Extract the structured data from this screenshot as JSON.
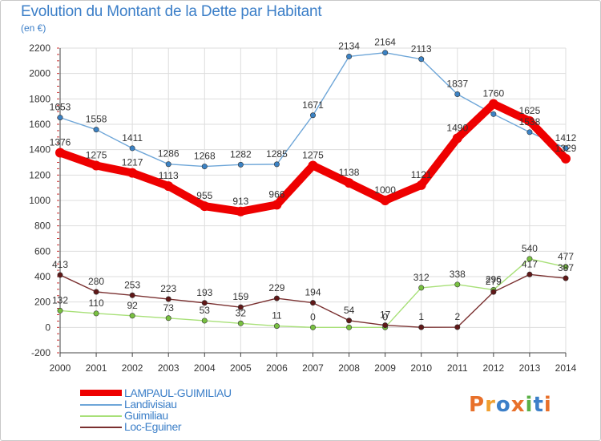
{
  "header": {
    "title": "Evolution du Montant de la Dette par Habitant",
    "subtitle": "(en €)"
  },
  "logo": {
    "text": "Proxiti",
    "colors": [
      "#e8702a",
      "#f0a030",
      "#3c7fc8",
      "#e8702a",
      "#5ab046",
      "#3c7fc8",
      "#e8702a"
    ]
  },
  "chart_data": {
    "type": "line",
    "title": "Evolution du Montant de la Dette par Habitant",
    "ylabel": "(en €)",
    "x": [
      "2000",
      "2001",
      "2002",
      "2003",
      "2004",
      "2005",
      "2006",
      "2007",
      "2008",
      "2009",
      "2010",
      "2011",
      "2012",
      "2013",
      "2014"
    ],
    "ylim": [
      -200,
      2200
    ],
    "yticks": [
      -200,
      0,
      200,
      400,
      600,
      800,
      1000,
      1200,
      1400,
      1600,
      1800,
      2000,
      2200
    ],
    "grid": true,
    "legend_position": "bottom-left",
    "series": [
      {
        "name": "Landivisiau",
        "color": "#6ea6d8",
        "marker": "#3b82c4",
        "values": [
          1653,
          1558,
          1411,
          1286,
          1268,
          1282,
          1285,
          1671,
          2134,
          2164,
          2113,
          1837,
          1680,
          1538,
          1412
        ],
        "labels": [
          "1653",
          "1558",
          "1411",
          "1286",
          "1268",
          "1282",
          "1285",
          "1671",
          "2134",
          "2164",
          "2113",
          "1837",
          "",
          "1538",
          "1412"
        ]
      },
      {
        "name": "Guimiliau",
        "color": "#a8e078",
        "marker": "#78c040",
        "values": [
          132,
          110,
          92,
          73,
          53,
          32,
          11,
          0,
          0,
          0,
          312,
          338,
          296,
          540,
          477
        ],
        "labels": [
          "132",
          "110",
          "92",
          "73",
          "53",
          "32",
          "11",
          "0",
          "",
          "0",
          "312",
          "338",
          "296",
          "540",
          "477"
        ]
      },
      {
        "name": "Loc-Eguiner",
        "color": "#7a3030",
        "marker": "#601818",
        "values": [
          413,
          280,
          253,
          223,
          193,
          159,
          229,
          194,
          54,
          17,
          1,
          2,
          279,
          417,
          387
        ],
        "labels": [
          "413",
          "280",
          "253",
          "223",
          "193",
          "159",
          "229",
          "194",
          "54",
          "17",
          "1",
          "2",
          "279",
          "417",
          "387"
        ]
      },
      {
        "name": "LAMPAUL-GUIMILIAU",
        "color": "#ee0000",
        "marker": "#ee0000",
        "values": [
          1376,
          1275,
          1217,
          1113,
          955,
          913,
          966,
          1275,
          1138,
          1000,
          1121,
          1490,
          1760,
          1625,
          1329
        ],
        "labels": [
          "1376",
          "1275",
          "1217",
          "1113",
          "955",
          "913",
          "966",
          "1275",
          "1138",
          "1000",
          "1121",
          "1490",
          "1760",
          "1625",
          "1329"
        ]
      }
    ]
  },
  "legend": {
    "items": [
      {
        "label": "LAMPAUL-GUIMILIAU",
        "color": "#ee0000"
      },
      {
        "label": "Landivisiau",
        "color": "#6ea6d8"
      },
      {
        "label": "Guimiliau",
        "color": "#a8e078"
      },
      {
        "label": "Loc-Eguiner",
        "color": "#7a3030"
      }
    ]
  }
}
